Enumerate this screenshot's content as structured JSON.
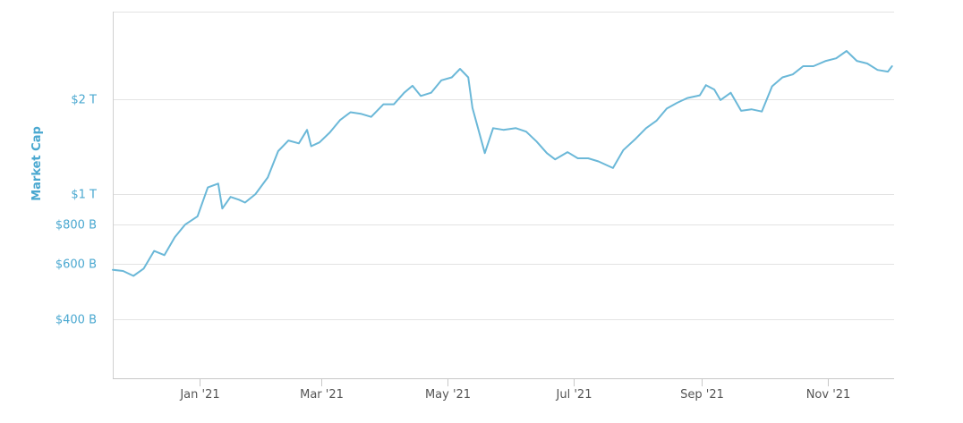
{
  "chart_data": {
    "type": "line",
    "title": "",
    "xlabel": "",
    "ylabel": "Market Cap",
    "y_scale": "log",
    "x_tick_labels": [
      "Jan '21",
      "Mar '21",
      "May '21",
      "Jul '21",
      "Sep '21",
      "Nov '21"
    ],
    "y_tick_labels": [
      "$400 B",
      "$600 B",
      "$800 B",
      "$1 T",
      "$2 T"
    ],
    "y_tick_values": [
      400,
      600,
      800,
      1000,
      2000
    ],
    "ylim": [
      260,
      3800
    ],
    "xlim": [
      "2020-11-20",
      "2021-12-03"
    ],
    "grid": true,
    "line_color": "#6bb8d8",
    "tick_color": "#4aa8d0",
    "series": [
      {
        "name": "",
        "x": [
          "2020-11-20",
          "2020-11-25",
          "2020-11-30",
          "2020-12-05",
          "2020-12-10",
          "2020-12-15",
          "2020-12-20",
          "2020-12-25",
          "2020-12-31",
          "2021-01-05",
          "2021-01-10",
          "2021-01-12",
          "2021-01-16",
          "2021-01-20",
          "2021-01-23",
          "2021-01-28",
          "2021-02-03",
          "2021-02-08",
          "2021-02-13",
          "2021-02-18",
          "2021-02-22",
          "2021-02-24",
          "2021-02-28",
          "2021-03-05",
          "2021-03-10",
          "2021-03-15",
          "2021-03-20",
          "2021-03-25",
          "2021-03-31",
          "2021-04-05",
          "2021-04-10",
          "2021-04-14",
          "2021-04-18",
          "2021-04-23",
          "2021-04-28",
          "2021-05-03",
          "2021-05-07",
          "2021-05-11",
          "2021-05-13",
          "2021-05-19",
          "2021-05-23",
          "2021-05-28",
          "2021-06-03",
          "2021-06-08",
          "2021-06-13",
          "2021-06-18",
          "2021-06-22",
          "2021-06-28",
          "2021-07-03",
          "2021-07-08",
          "2021-07-13",
          "2021-07-20",
          "2021-07-25",
          "2021-07-31",
          "2021-08-05",
          "2021-08-10",
          "2021-08-15",
          "2021-08-20",
          "2021-08-25",
          "2021-08-31",
          "2021-09-03",
          "2021-09-07",
          "2021-09-10",
          "2021-09-15",
          "2021-09-20",
          "2021-09-25",
          "2021-09-30",
          "2021-10-05",
          "2021-10-10",
          "2021-10-15",
          "2021-10-20",
          "2021-10-25",
          "2021-10-31",
          "2021-11-05",
          "2021-11-10",
          "2021-11-15",
          "2021-11-20",
          "2021-11-25",
          "2021-11-30",
          "2021-12-02"
        ],
        "y": [
          575,
          570,
          550,
          580,
          660,
          640,
          730,
          800,
          850,
          1050,
          1080,
          900,
          980,
          960,
          940,
          1000,
          1130,
          1370,
          1480,
          1450,
          1600,
          1420,
          1460,
          1570,
          1720,
          1820,
          1800,
          1760,
          1930,
          1930,
          2100,
          2210,
          2050,
          2100,
          2300,
          2350,
          2500,
          2350,
          1880,
          1350,
          1620,
          1600,
          1620,
          1580,
          1470,
          1350,
          1290,
          1360,
          1300,
          1300,
          1270,
          1210,
          1380,
          1500,
          1620,
          1710,
          1870,
          1950,
          2020,
          2060,
          2220,
          2150,
          1990,
          2100,
          1840,
          1860,
          1830,
          2200,
          2350,
          2400,
          2550,
          2550,
          2650,
          2700,
          2850,
          2650,
          2600,
          2480,
          2450,
          2550
        ]
      }
    ]
  }
}
